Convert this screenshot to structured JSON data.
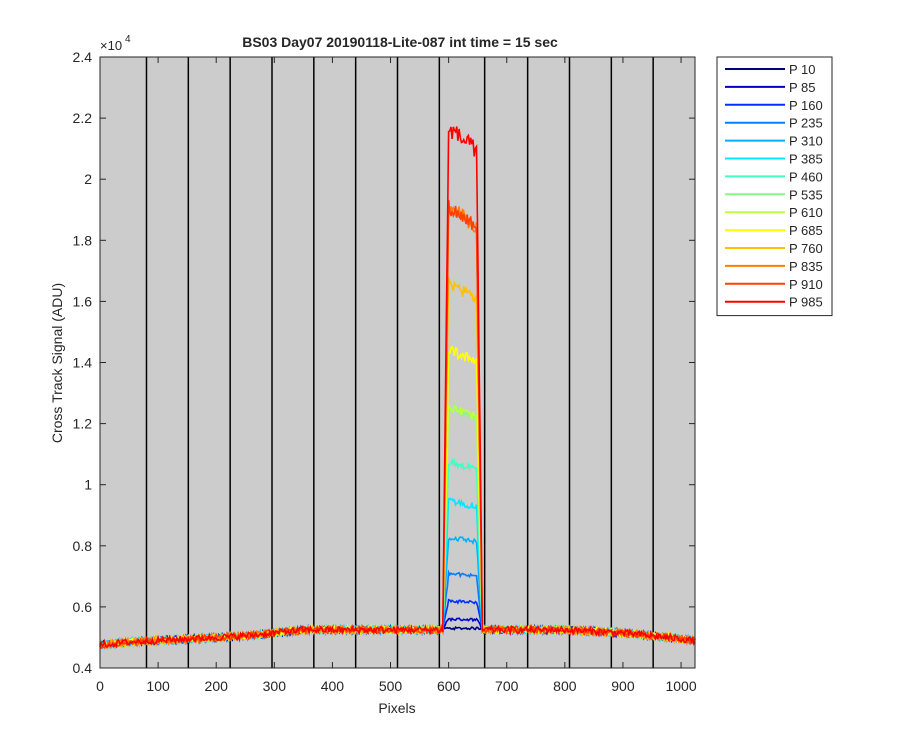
{
  "chart_data": {
    "type": "line",
    "title": "BS03 Day07 20190118-Lite-087 int time = 15 sec",
    "xlabel": "Pixels",
    "ylabel": "Cross Track Signal (ADU)",
    "y_exponent_label": "×10",
    "y_exponent_power": "4",
    "xlim": [
      0,
      1024
    ],
    "ylim": [
      4000,
      24000
    ],
    "x_ticks": [
      0,
      100,
      200,
      300,
      400,
      500,
      600,
      700,
      800,
      900,
      1000
    ],
    "x_tick_labels": [
      "0",
      "100",
      "200",
      "300",
      "400",
      "500",
      "600",
      "700",
      "800",
      "900",
      "1000"
    ],
    "y_ticks": [
      4000,
      6000,
      8000,
      10000,
      12000,
      14000,
      16000,
      18000,
      20000,
      22000,
      24000
    ],
    "y_tick_labels": [
      "0.4",
      "0.6",
      "0.8",
      "1",
      "1.2",
      "1.4",
      "1.6",
      "1.8",
      "2",
      "2.2",
      "2.4"
    ],
    "background_color": "#cccccc",
    "vertical_lines_x": [
      80,
      152,
      224,
      296,
      368,
      440,
      512,
      584,
      662,
      736,
      808,
      880,
      952
    ],
    "legend_position": "outside-right",
    "peak_start_x": 592,
    "peak_end_x": 656,
    "baseline": {
      "x": [
        0,
        50,
        100,
        150,
        200,
        250,
        300,
        350,
        400,
        450,
        500,
        550,
        590,
        660,
        700,
        750,
        800,
        850,
        900,
        950,
        1000,
        1024
      ],
      "y": [
        4750,
        4850,
        4900,
        4950,
        5000,
        5050,
        5150,
        5250,
        5250,
        5250,
        5250,
        5250,
        5250,
        5250,
        5250,
        5250,
        5250,
        5200,
        5150,
        5050,
        4950,
        4900
      ]
    },
    "series": [
      {
        "name": "P 10",
        "color": "#000080",
        "peak": 5300
      },
      {
        "name": "P 85",
        "color": "#0000c8",
        "peak": 5600
      },
      {
        "name": "P 160",
        "color": "#0030ff",
        "peak": 6200
      },
      {
        "name": "P 235",
        "color": "#0080ff",
        "peak": 7100
      },
      {
        "name": "P 310",
        "color": "#00b0ff",
        "peak": 8300
      },
      {
        "name": "P 385",
        "color": "#00e8ff",
        "peak": 9500
      },
      {
        "name": "P 460",
        "color": "#40ffc0",
        "peak": 10800
      },
      {
        "name": "P 535",
        "color": "#80ff80",
        "peak": 12600
      },
      {
        "name": "P 610",
        "color": "#c0ff40",
        "peak": 12600
      },
      {
        "name": "P 685",
        "color": "#ffff00",
        "peak": 14500
      },
      {
        "name": "P 760",
        "color": "#ffc000",
        "peak": 16700
      },
      {
        "name": "P 835",
        "color": "#ff8000",
        "peak": 19200
      },
      {
        "name": "P 910",
        "color": "#ff4000",
        "peak": 19200
      },
      {
        "name": "P 985",
        "color": "#ff0000",
        "peak": 21800
      }
    ]
  }
}
